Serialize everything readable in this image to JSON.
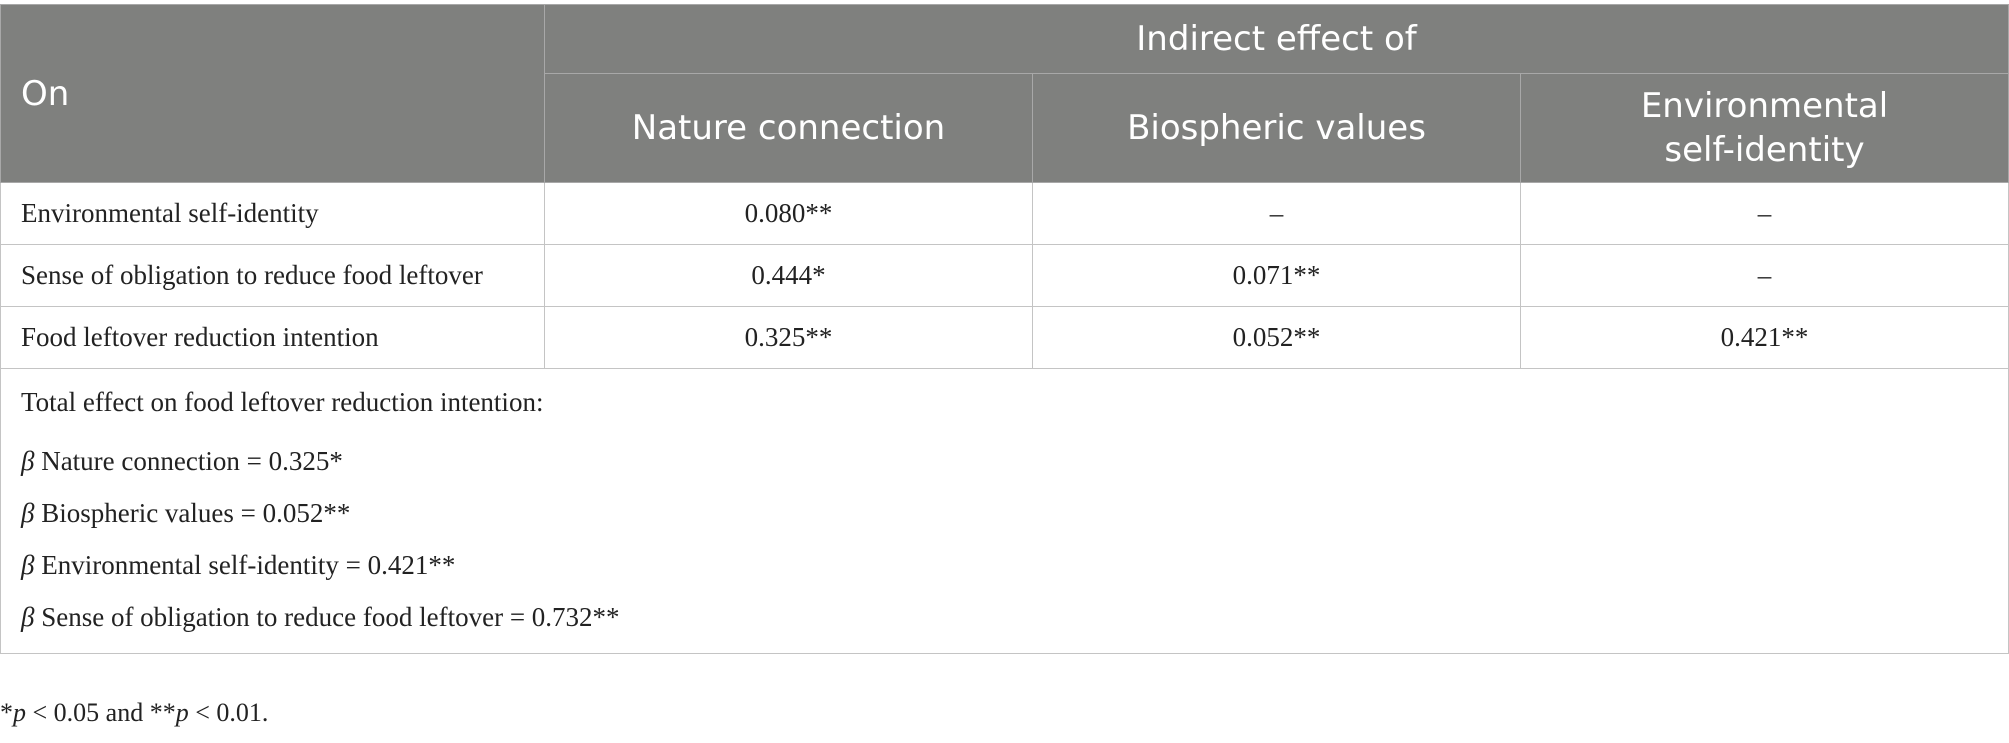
{
  "header": {
    "row_label": "On",
    "group_label": "Indirect effect of",
    "columns": [
      "Nature connection",
      "Biospheric values",
      "Environmental self-identity"
    ]
  },
  "rows": [
    {
      "label": "Environmental self-identity",
      "values": [
        "0.080**",
        "–",
        "–"
      ]
    },
    {
      "label": "Sense of obligation to reduce food leftover",
      "values": [
        "0.444*",
        "0.071**",
        "–"
      ]
    },
    {
      "label": "Food leftover reduction intention",
      "values": [
        "0.325**",
        "0.052**",
        "0.421**"
      ]
    }
  ],
  "total_effect": {
    "title": "Total effect on food leftover reduction intention:",
    "beta_symbol": "β",
    "items": [
      " Nature connection = 0.325*",
      " Biospheric values = 0.052**",
      " Environmental self-identity = 0.421**",
      " Sense of obligation to reduce food leftover = 0.732**"
    ]
  },
  "footnote": {
    "star1": "*",
    "p1": "p",
    "text1": " < 0.05 and **",
    "p2": "p",
    "text2": " < 0.01."
  }
}
